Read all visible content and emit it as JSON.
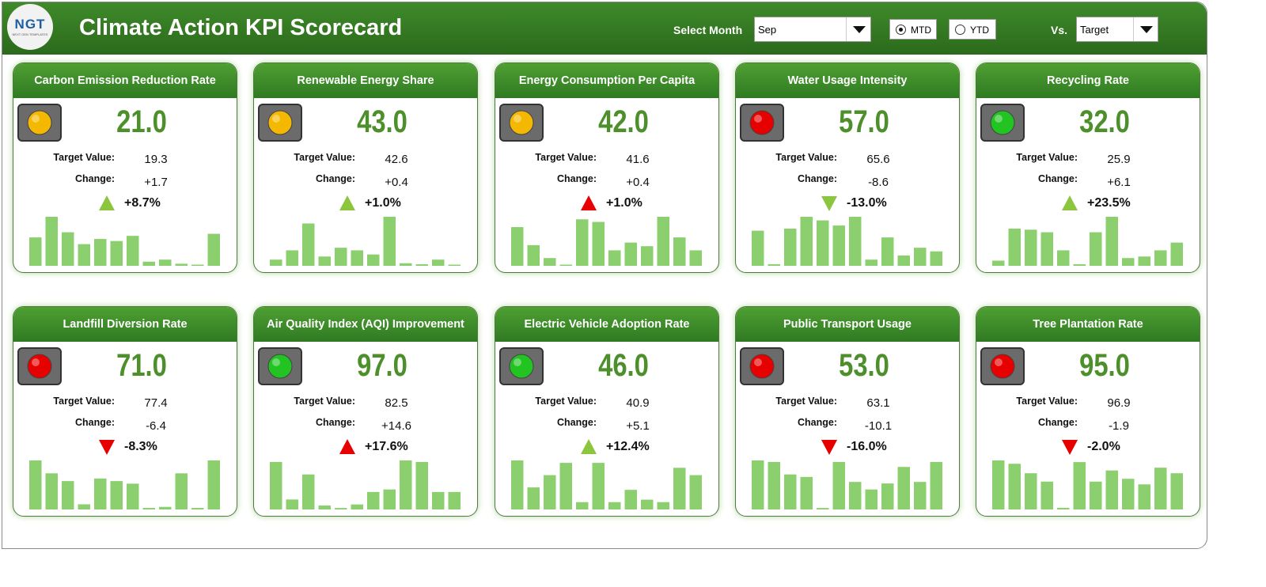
{
  "header": {
    "logo": "NGT",
    "logo_subtitle": "NEXT GEN TEMPLATES",
    "title": "Climate Action KPI Scorecard",
    "month_label": "Select Month",
    "month_value": "Sep",
    "mode_options": [
      "MTD",
      "YTD"
    ],
    "mode_selected": 0,
    "vs_label": "Vs.",
    "vs_value": "Target"
  },
  "labels": {
    "target": "Target Value:",
    "change": "Change:"
  },
  "cards": [
    {
      "title": "Carbon Emission Reduction Rate",
      "value": "21.0",
      "target": "19.3",
      "change": "+1.7",
      "percent": "+8.7%",
      "light": "#f5b800",
      "arrow": "up",
      "arrow_color": "#8cc63f",
      "spark": [
        55,
        95,
        65,
        42,
        52,
        48,
        58,
        8,
        12,
        4,
        2,
        62
      ]
    },
    {
      "title": "Renewable Energy Share",
      "value": "43.0",
      "target": "42.6",
      "change": "+0.4",
      "percent": "+1.0%",
      "light": "#f5b800",
      "arrow": "up",
      "arrow_color": "#8cc63f",
      "spark": [
        12,
        30,
        82,
        18,
        35,
        30,
        22,
        95,
        5,
        3,
        12,
        2
      ]
    },
    {
      "title": "Energy Consumption Per Capita",
      "value": "42.0",
      "target": "41.6",
      "change": "+0.4",
      "percent": "+1.0%",
      "light": "#f5b800",
      "arrow": "up",
      "arrow_color": "#e60000",
      "spark": [
        75,
        40,
        15,
        2,
        90,
        85,
        30,
        45,
        38,
        95,
        55,
        30
      ]
    },
    {
      "title": "Water Usage Intensity",
      "value": "57.0",
      "target": "65.6",
      "change": "-8.6",
      "percent": "-13.0%",
      "light": "#e60000",
      "arrow": "down",
      "arrow_color": "#8cc63f",
      "spark": [
        68,
        3,
        72,
        95,
        88,
        78,
        95,
        12,
        55,
        20,
        35,
        28
      ]
    },
    {
      "title": "Recycling Rate",
      "value": "32.0",
      "target": "25.9",
      "change": "+6.1",
      "percent": "+23.5%",
      "light": "#22c422",
      "arrow": "up",
      "arrow_color": "#8cc63f",
      "spark": [
        10,
        72,
        70,
        65,
        30,
        3,
        65,
        95,
        15,
        18,
        30,
        45
      ]
    },
    {
      "title": "Landfill Diversion Rate",
      "value": "71.0",
      "target": "77.4",
      "change": "-6.4",
      "percent": "-8.3%",
      "light": "#e60000",
      "arrow": "down",
      "arrow_color": "#e60000",
      "spark": [
        95,
        70,
        55,
        10,
        60,
        55,
        50,
        3,
        5,
        70,
        3,
        95
      ]
    },
    {
      "title": "Air Quality Index (AQI) Improvement",
      "value": "97.0",
      "target": "82.5",
      "change": "+14.6",
      "percent": "+17.6%",
      "light": "#22c422",
      "arrow": "up",
      "arrow_color": "#e60000",
      "spark": [
        95,
        20,
        70,
        8,
        3,
        10,
        35,
        40,
        98,
        95,
        35,
        35
      ]
    },
    {
      "title": "Electric Vehicle Adoption Rate",
      "value": "46.0",
      "target": "40.9",
      "change": "+5.1",
      "percent": "+12.4%",
      "light": "#22c422",
      "arrow": "up",
      "arrow_color": "#8cc63f",
      "spark": [
        100,
        45,
        70,
        95,
        15,
        95,
        15,
        40,
        20,
        15,
        85,
        70
      ]
    },
    {
      "title": "Public Transport Usage",
      "value": "53.0",
      "target": "63.1",
      "change": "-10.1",
      "percent": "-16.0%",
      "light": "#e60000",
      "arrow": "down",
      "arrow_color": "#e60000",
      "spark": [
        98,
        95,
        70,
        65,
        3,
        95,
        55,
        40,
        52,
        85,
        55,
        95
      ]
    },
    {
      "title": "Tree Plantation Rate",
      "value": "95.0",
      "target": "96.9",
      "change": "-1.9",
      "percent": "-2.0%",
      "light": "#e60000",
      "arrow": "down",
      "arrow_color": "#e60000",
      "spark": [
        88,
        82,
        65,
        50,
        3,
        85,
        50,
        70,
        55,
        45,
        75,
        65
      ]
    }
  ]
}
